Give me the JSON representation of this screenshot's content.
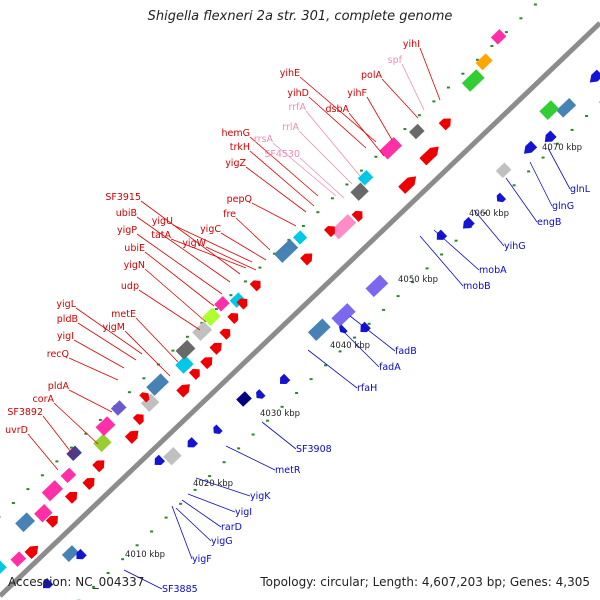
{
  "title": "Shigella flexneri 2a str. 301, complete genome",
  "footer": {
    "accession_label": "Accession:",
    "accession": "NC_004337",
    "topology_label": "Topology:",
    "topology": "circular",
    "length_label": "Length:",
    "length": "4,607,203 bp",
    "genes_label": "Genes:",
    "genes": "4,305"
  },
  "colors": {
    "backbone": "#8c8c8c",
    "plus_label": "#d40000",
    "minus_label": "#0a0ac8",
    "rna_label": "#f08cb4",
    "plus_arrow": "#ee0000",
    "minus_arrow": "#1414d2",
    "tick": "#2a8a2a"
  },
  "scale_ticks": [
    "4010 kbp",
    "4020 kbp",
    "4030 kbp",
    "4040 kbp",
    "4050 kbp",
    "4060 kbp",
    "4070 kbp"
  ],
  "plus_labels": [
    {
      "text": "uvrD"
    },
    {
      "text": "SF3892"
    },
    {
      "text": "corA"
    },
    {
      "text": "pldA"
    },
    {
      "text": "recQ"
    },
    {
      "text": "yigI"
    },
    {
      "text": "pldB"
    },
    {
      "text": "yigL"
    },
    {
      "text": "yigM"
    },
    {
      "text": "metE"
    },
    {
      "text": "udp"
    },
    {
      "text": "yigN"
    },
    {
      "text": "ubiE"
    },
    {
      "text": "yigP"
    },
    {
      "text": "ubiB"
    },
    {
      "text": "SF3915"
    },
    {
      "text": "tatA"
    },
    {
      "text": "yigU"
    },
    {
      "text": "yigW"
    },
    {
      "text": "yigC"
    },
    {
      "text": "fre"
    },
    {
      "text": "pepQ"
    },
    {
      "text": "yigZ"
    },
    {
      "text": "trkH"
    },
    {
      "text": "hemG"
    },
    {
      "text": "yihD"
    },
    {
      "text": "yihE"
    },
    {
      "text": "dsbA"
    },
    {
      "text": "yihF"
    },
    {
      "text": "polA"
    },
    {
      "text": "yihI"
    }
  ],
  "rna_labels": [
    {
      "text": "rrsA"
    },
    {
      "text": "SF4530"
    },
    {
      "text": "rrlA"
    },
    {
      "text": "rrfA"
    },
    {
      "text": "spf"
    }
  ],
  "minus_labels": [
    {
      "text": "SF3885"
    },
    {
      "text": "yigF"
    },
    {
      "text": "yigG"
    },
    {
      "text": "rarD"
    },
    {
      "text": "yigI"
    },
    {
      "text": "yigK"
    },
    {
      "text": "metR"
    },
    {
      "text": "SF3908"
    },
    {
      "text": "rfaH"
    },
    {
      "text": "fadA"
    },
    {
      "text": "fadB"
    },
    {
      "text": "mobB"
    },
    {
      "text": "mobA"
    },
    {
      "text": "yihG"
    },
    {
      "text": "engB"
    },
    {
      "text": "glnG"
    },
    {
      "text": "glnL"
    }
  ]
}
